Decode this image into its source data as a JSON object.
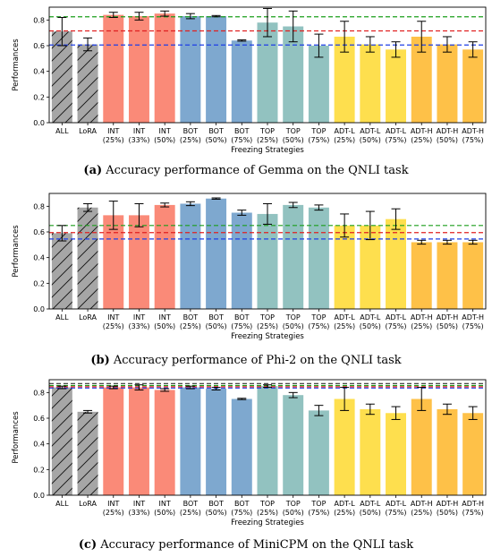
{
  "colors": {
    "ALL": "#a6a6a6",
    "LoRA": "#a6a6a6",
    "INT": "#fa8a78",
    "BOT": "#7ea8cf",
    "TOP": "#92c2c0",
    "ADT-L": "#fedf4e",
    "ADT-H": "#fec148",
    "ref_green": "#1b9e1b",
    "ref_red": "#e02020",
    "ref_blue": "#1f3fe6",
    "ref_black": "#333333"
  },
  "chart_data": [
    {
      "type": "bar",
      "caption_tag": "(a)",
      "caption_text": "Accuracy performance of Gemma on the QNLI task",
      "xlabel": "Freezing Strategies",
      "ylabel": "Performances",
      "ylim": [
        0,
        0.9
      ],
      "yticks": [
        "0.0",
        "0.2",
        "0.4",
        "0.6",
        "0.8"
      ],
      "categories": [
        [
          "ALL",
          ""
        ],
        [
          "LoRA",
          ""
        ],
        [
          "INT",
          "(25%)"
        ],
        [
          "INT",
          "(33%)"
        ],
        [
          "INT",
          "(50%)"
        ],
        [
          "BOT",
          "(25%)"
        ],
        [
          "BOT",
          "(50%)"
        ],
        [
          "BOT",
          "(75%)"
        ],
        [
          "TOP",
          "(25%)"
        ],
        [
          "TOP",
          "(50%)"
        ],
        [
          "TOP",
          "(75%)"
        ],
        [
          "ADT-L",
          "(25%)"
        ],
        [
          "ADT-L",
          "(50%)"
        ],
        [
          "ADT-L",
          "(75%)"
        ],
        [
          "ADT-H",
          "(25%)"
        ],
        [
          "ADT-H",
          "(50%)"
        ],
        [
          "ADT-H",
          "(75%)"
        ]
      ],
      "values": [
        0.71,
        0.61,
        0.84,
        0.83,
        0.85,
        0.83,
        0.83,
        0.64,
        0.78,
        0.75,
        0.6,
        0.67,
        0.61,
        0.57,
        0.67,
        0.61,
        0.57
      ],
      "errors": [
        0.11,
        0.05,
        0.02,
        0.03,
        0.02,
        0.02,
        0.005,
        0.005,
        0.11,
        0.12,
        0.09,
        0.12,
        0.06,
        0.06,
        0.12,
        0.06,
        0.06
      ],
      "hatched": [
        0,
        1
      ],
      "reference_lines": [
        {
          "value": 0.825,
          "color": "ref_green"
        },
        {
          "value": 0.715,
          "color": "ref_red"
        },
        {
          "value": 0.605,
          "color": "ref_blue"
        }
      ]
    },
    {
      "type": "bar",
      "caption_tag": "(b)",
      "caption_text": "Accuracy performance of Phi-2 on the QNLI task",
      "xlabel": "Freezing Strategies",
      "ylabel": "Performances",
      "ylim": [
        0,
        0.9
      ],
      "yticks": [
        "0.0",
        "0.2",
        "0.4",
        "0.6",
        "0.8"
      ],
      "categories": [
        [
          "ALL",
          ""
        ],
        [
          "LoRA",
          ""
        ],
        [
          "INT",
          "(25%)"
        ],
        [
          "INT",
          "(33%)"
        ],
        [
          "INT",
          "(50%)"
        ],
        [
          "BOT",
          "(25%)"
        ],
        [
          "BOT",
          "(50%)"
        ],
        [
          "BOT",
          "(75%)"
        ],
        [
          "TOP",
          "(25%)"
        ],
        [
          "TOP",
          "(50%)"
        ],
        [
          "TOP",
          "(75%)"
        ],
        [
          "ADT-L",
          "(25%)"
        ],
        [
          "ADT-L",
          "(50%)"
        ],
        [
          "ADT-L",
          "(75%)"
        ],
        [
          "ADT-H",
          "(25%)"
        ],
        [
          "ADT-H",
          "(50%)"
        ],
        [
          "ADT-H",
          "(75%)"
        ]
      ],
      "values": [
        0.59,
        0.79,
        0.73,
        0.73,
        0.81,
        0.82,
        0.86,
        0.75,
        0.74,
        0.81,
        0.79,
        0.65,
        0.65,
        0.7,
        0.52,
        0.52,
        0.52
      ],
      "errors": [
        0.06,
        0.03,
        0.11,
        0.09,
        0.015,
        0.015,
        0.005,
        0.02,
        0.08,
        0.02,
        0.02,
        0.09,
        0.11,
        0.08,
        0.015,
        0.015,
        0.015
      ],
      "hatched": [
        0,
        1
      ],
      "reference_lines": [
        {
          "value": 0.65,
          "color": "ref_green"
        },
        {
          "value": 0.595,
          "color": "ref_red"
        },
        {
          "value": 0.545,
          "color": "ref_blue"
        }
      ]
    },
    {
      "type": "bar",
      "caption_tag": "(c)",
      "caption_text": "Accuracy performance of MiniCPM on the QNLI task",
      "xlabel": "Freezing Strategies",
      "ylabel": "Performances",
      "ylim": [
        0,
        0.9
      ],
      "yticks": [
        "0.0",
        "0.2",
        "0.4",
        "0.6",
        "0.8"
      ],
      "categories": [
        [
          "ALL",
          ""
        ],
        [
          "LoRA",
          ""
        ],
        [
          "INT",
          "(25%)"
        ],
        [
          "INT",
          "(33%)"
        ],
        [
          "INT",
          "(50%)"
        ],
        [
          "BOT",
          "(25%)"
        ],
        [
          "BOT",
          "(50%)"
        ],
        [
          "BOT",
          "(75%)"
        ],
        [
          "TOP",
          "(25%)"
        ],
        [
          "TOP",
          "(50%)"
        ],
        [
          "TOP",
          "(75%)"
        ],
        [
          "ADT-L",
          "(25%)"
        ],
        [
          "ADT-L",
          "(50%)"
        ],
        [
          "ADT-L",
          "(75%)"
        ],
        [
          "ADT-H",
          "(25%)"
        ],
        [
          "ADT-H",
          "(50%)"
        ],
        [
          "ADT-H",
          "(75%)"
        ]
      ],
      "values": [
        0.84,
        0.65,
        0.84,
        0.84,
        0.82,
        0.84,
        0.83,
        0.75,
        0.85,
        0.78,
        0.66,
        0.75,
        0.67,
        0.64,
        0.75,
        0.67,
        0.64
      ],
      "errors": [
        0.01,
        0.01,
        0.01,
        0.02,
        0.01,
        0.01,
        0.01,
        0.005,
        0.01,
        0.02,
        0.04,
        0.09,
        0.04,
        0.05,
        0.09,
        0.04,
        0.05
      ],
      "hatched": [
        0,
        1
      ],
      "reference_lines": [
        {
          "value": 0.87,
          "color": "ref_black"
        },
        {
          "value": 0.855,
          "color": "ref_green"
        },
        {
          "value": 0.845,
          "color": "ref_red"
        },
        {
          "value": 0.835,
          "color": "ref_blue"
        }
      ]
    }
  ]
}
